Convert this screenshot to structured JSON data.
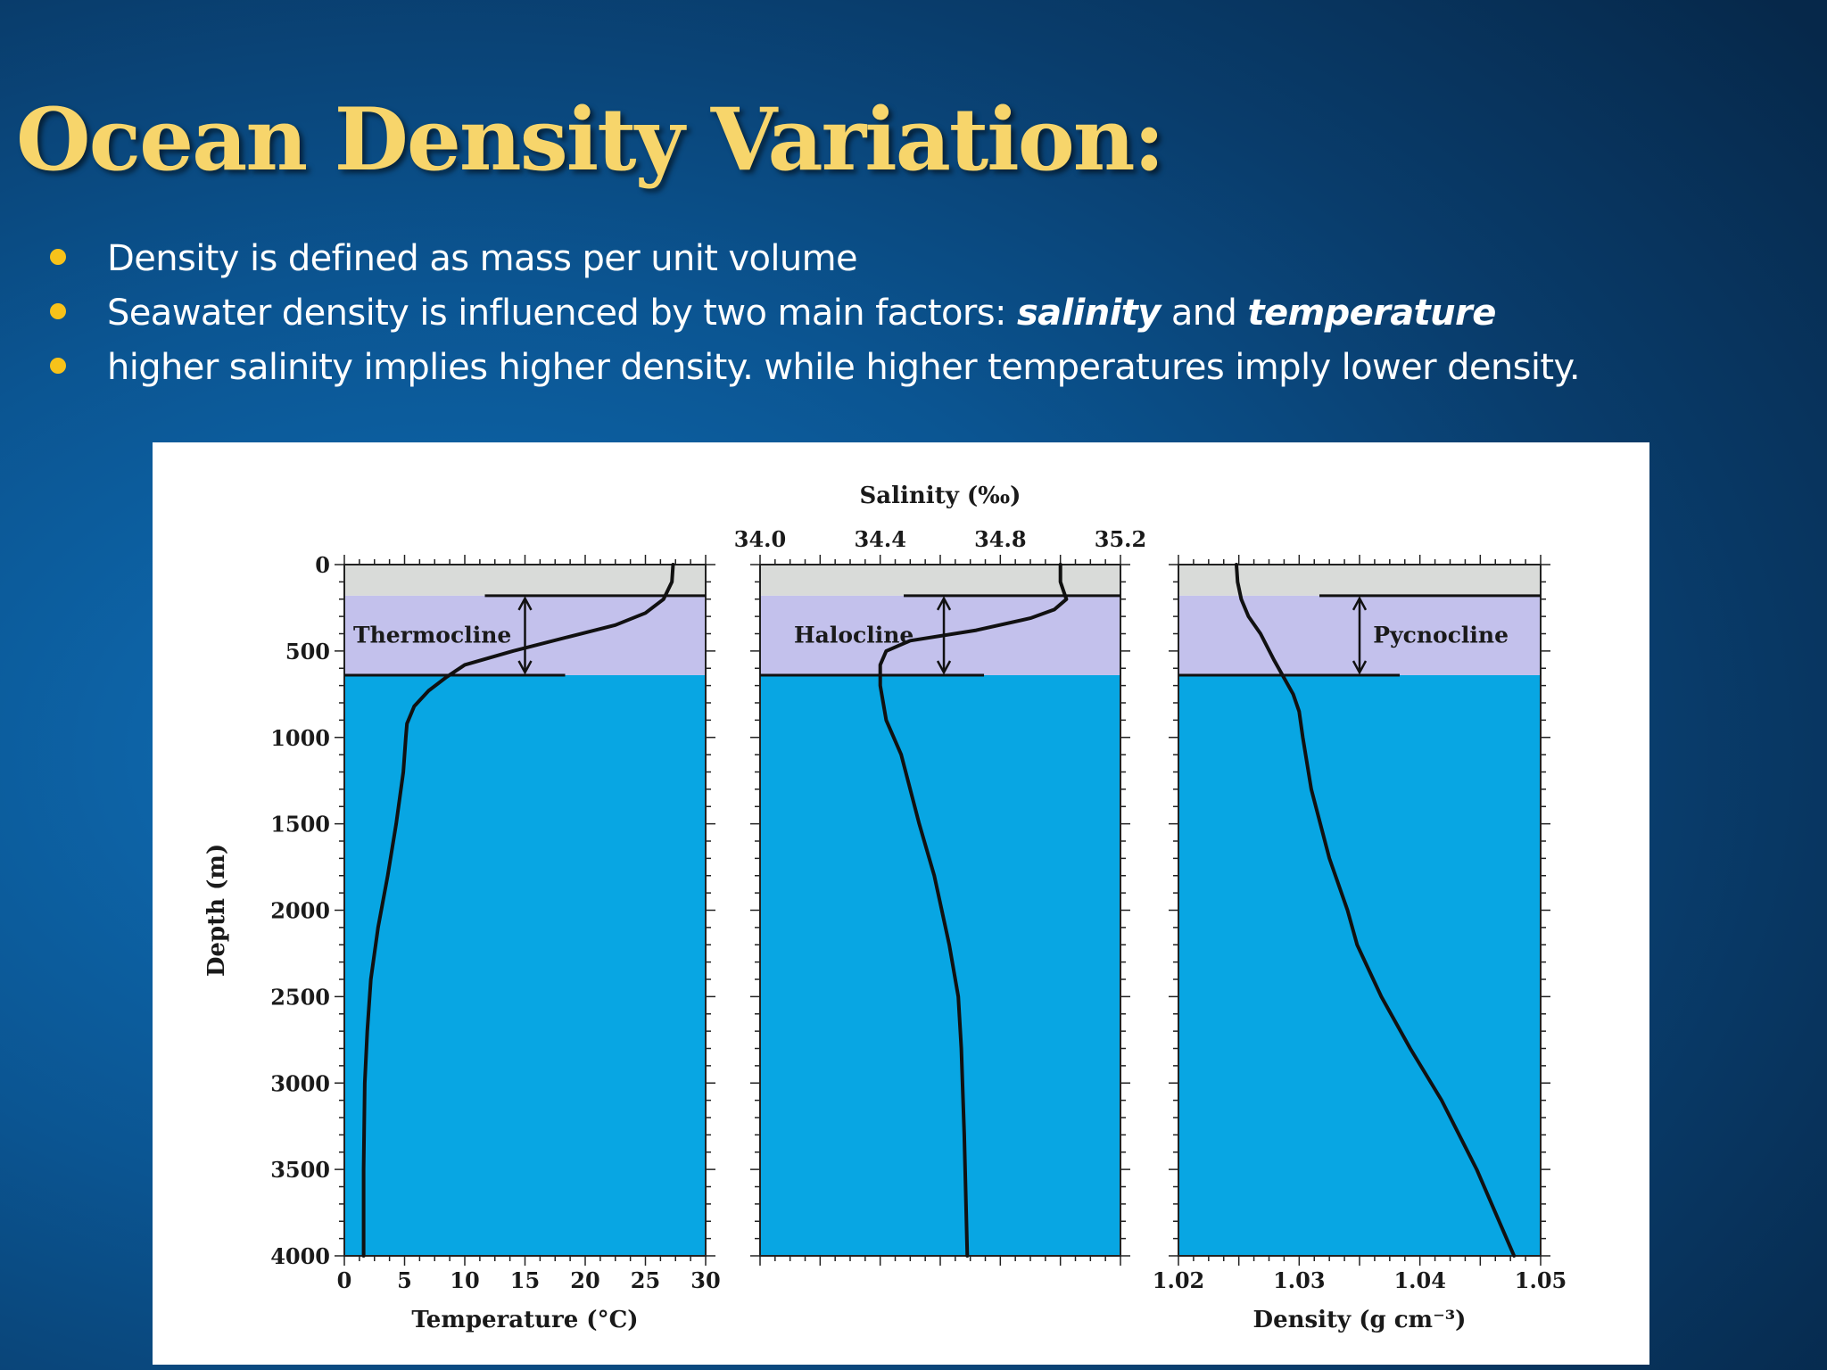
{
  "title": "Ocean Density Variation:",
  "bullets": [
    {
      "segments": [
        {
          "text": "Density is defined as mass per unit volume",
          "style": "normal"
        }
      ]
    },
    {
      "segments": [
        {
          "text": "Seawater density is influenced by two main factors: ",
          "style": "normal"
        },
        {
          "text": "salinity",
          "style": "bold-italic"
        },
        {
          "text": " and ",
          "style": "normal"
        },
        {
          "text": "temperature",
          "style": "bold-italic"
        }
      ]
    },
    {
      "segments": [
        {
          "text": "higher salinity implies higher density.  while higher temperatures imply lower density.",
          "style": "normal"
        }
      ]
    }
  ],
  "colors": {
    "background": "#0b5592",
    "title": "#f7d56b",
    "bullet_dot": "#f7c21a",
    "surface_layer": "#d9dbd9",
    "cline_layer": "#c3c1ec",
    "deep_layer": "#08a6e3",
    "curve": "#111111"
  },
  "chart_data": [
    {
      "type": "line",
      "cline_label": "Thermocline",
      "xlabel": "Temperature (°C)",
      "xlabel_position": "bottom",
      "ylabel": "Depth (m)",
      "xlim": [
        0,
        30
      ],
      "ylim": [
        0,
        4000
      ],
      "y_inverted": true,
      "xticks": [
        "0",
        "5",
        "10",
        "15",
        "20",
        "25",
        "30"
      ],
      "yticks": [
        "0",
        "500",
        "1000",
        "1500",
        "2000",
        "2500",
        "3000",
        "3500",
        "4000"
      ],
      "surface_layer_depth": [
        0,
        180
      ],
      "cline_depth": [
        180,
        640
      ],
      "series": [
        {
          "x": [
            27.3,
            27.2,
            26.5,
            25,
            22.5,
            18.5,
            14,
            10,
            8.5,
            7,
            5.8,
            5.2,
            5.1,
            4.9,
            4.3,
            3.6,
            2.8,
            2.2,
            1.9,
            1.7,
            1.6,
            1.6
          ],
          "y": [
            0,
            100,
            200,
            280,
            350,
            420,
            500,
            580,
            650,
            730,
            820,
            920,
            1000,
            1200,
            1500,
            1800,
            2100,
            2400,
            2700,
            3000,
            3500,
            4000
          ]
        }
      ]
    },
    {
      "type": "line",
      "cline_label": "Halocline",
      "xlabel": "Salinity (‰)",
      "xlabel_position": "top",
      "xlim": [
        34.0,
        35.2
      ],
      "ylim": [
        0,
        4000
      ],
      "y_inverted": true,
      "xticks": [
        "34.0",
        "34.4",
        "34.8",
        "35.2"
      ],
      "surface_layer_depth": [
        0,
        180
      ],
      "cline_depth": [
        180,
        640
      ],
      "series": [
        {
          "x": [
            35.0,
            35.0,
            35.01,
            35.02,
            34.98,
            34.9,
            34.72,
            34.5,
            34.42,
            34.4,
            34.4,
            34.42,
            34.47,
            34.53,
            34.58,
            34.63,
            34.66,
            34.67,
            34.68,
            34.69
          ],
          "y": [
            0,
            100,
            150,
            200,
            260,
            310,
            380,
            440,
            500,
            580,
            700,
            900,
            1100,
            1500,
            1800,
            2200,
            2500,
            2800,
            3300,
            4000
          ]
        }
      ]
    },
    {
      "type": "line",
      "cline_label": "Pycnocline",
      "xlabel": "Density (g cm⁻³)",
      "xlabel_position": "bottom",
      "xlim": [
        1.02,
        1.05
      ],
      "ylim": [
        0,
        4000
      ],
      "y_inverted": true,
      "xticks": [
        "1.02",
        "1.03",
        "1.04",
        "1.05"
      ],
      "surface_layer_depth": [
        0,
        180
      ],
      "cline_depth": [
        180,
        640
      ],
      "series": [
        {
          "x": [
            1.0248,
            1.0249,
            1.0252,
            1.0258,
            1.0268,
            1.0279,
            1.0287,
            1.0295,
            1.03,
            1.0303,
            1.031,
            1.0325,
            1.034,
            1.0348,
            1.0368,
            1.0392,
            1.0418,
            1.0447,
            1.0478
          ],
          "y": [
            0,
            100,
            200,
            300,
            400,
            550,
            650,
            750,
            850,
            1000,
            1300,
            1700,
            2000,
            2200,
            2500,
            2800,
            3100,
            3500,
            4000
          ]
        }
      ]
    }
  ]
}
